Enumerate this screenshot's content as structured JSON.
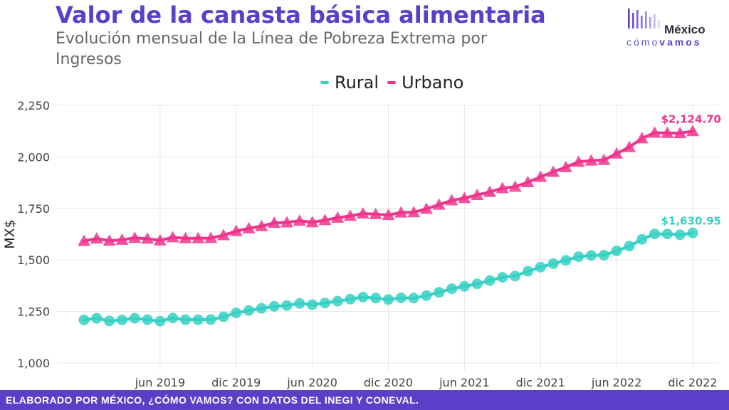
{
  "header": {
    "title": "Valor de la canasta básica alimentaria",
    "subtitle": "Evolución mensual de la Línea de Pobreza Extrema por Ingresos"
  },
  "logo": {
    "top": "México",
    "bottom_a": "cómo",
    "bottom_b": "vamos"
  },
  "footer": {
    "text": "ELABORADO POR MÉXICO, ¿CÓMO VAMOS? CON DATOS DEL INEGI Y CONEVAL."
  },
  "colors": {
    "accent": "#5a3fc8",
    "rural": "#36d1c4",
    "urbano": "#f0348c"
  },
  "chart_data": {
    "type": "line",
    "title": "Valor de la canasta básica alimentaria",
    "subtitle": "Evolución mensual de la Línea de Pobreza Extrema por Ingresos",
    "xlabel": "",
    "ylabel": "MX$",
    "ylim": [
      1000,
      2250
    ],
    "y_ticks": [
      1000,
      1250,
      1500,
      1750,
      2000,
      2250
    ],
    "y_tick_labels": [
      "1,000",
      "1,250",
      "1,500",
      "1,750",
      "2,000",
      "2,250"
    ],
    "x_range": [
      "2018-12",
      "2022-12"
    ],
    "x_ticks": [
      "2019-06",
      "2019-12",
      "2020-06",
      "2020-12",
      "2021-06",
      "2021-12",
      "2022-06",
      "2022-12"
    ],
    "x_tick_labels": [
      "jun 2019",
      "dic 2019",
      "jun 2020",
      "dic 2020",
      "jun 2021",
      "dic 2021",
      "jun 2022",
      "dic 2022"
    ],
    "grid": true,
    "legend_position": "top-center",
    "x": [
      "2018-12",
      "2019-01",
      "2019-02",
      "2019-03",
      "2019-04",
      "2019-05",
      "2019-06",
      "2019-07",
      "2019-08",
      "2019-09",
      "2019-10",
      "2019-11",
      "2019-12",
      "2020-01",
      "2020-02",
      "2020-03",
      "2020-04",
      "2020-05",
      "2020-06",
      "2020-07",
      "2020-08",
      "2020-09",
      "2020-10",
      "2020-11",
      "2020-12",
      "2021-01",
      "2021-02",
      "2021-03",
      "2021-04",
      "2021-05",
      "2021-06",
      "2021-07",
      "2021-08",
      "2021-09",
      "2021-10",
      "2021-11",
      "2021-12",
      "2022-01",
      "2022-02",
      "2022-03",
      "2022-04",
      "2022-05",
      "2022-06",
      "2022-07",
      "2022-08",
      "2022-09",
      "2022-10",
      "2022-11",
      "2022-12"
    ],
    "series": [
      {
        "name": "Rural",
        "marker": "circle",
        "values": [
          1209,
          1217,
          1204,
          1209,
          1217,
          1210,
          1203,
          1218,
          1210,
          1210,
          1211,
          1224,
          1243,
          1255,
          1265,
          1275,
          1279,
          1289,
          1283,
          1291,
          1300,
          1310,
          1320,
          1315,
          1308,
          1316,
          1315,
          1327,
          1343,
          1360,
          1372,
          1384,
          1400,
          1416,
          1422,
          1445,
          1465,
          1482,
          1498,
          1516,
          1522,
          1523,
          1544,
          1567,
          1600,
          1626,
          1626,
          1622,
          1630.95
        ],
        "end_label": "$1,630.95"
      },
      {
        "name": "Urbano",
        "marker": "triangle",
        "values": [
          1592,
          1604,
          1593,
          1598,
          1607,
          1603,
          1595,
          1610,
          1605,
          1605,
          1606,
          1620,
          1640,
          1653,
          1664,
          1680,
          1682,
          1690,
          1683,
          1693,
          1705,
          1714,
          1725,
          1722,
          1718,
          1730,
          1731,
          1748,
          1768,
          1789,
          1800,
          1815,
          1830,
          1848,
          1855,
          1877,
          1903,
          1927,
          1950,
          1976,
          1982,
          1985,
          2016,
          2047,
          2090,
          2117,
          2116,
          2115,
          2124.7
        ],
        "end_label": "$2,124.70"
      }
    ]
  }
}
